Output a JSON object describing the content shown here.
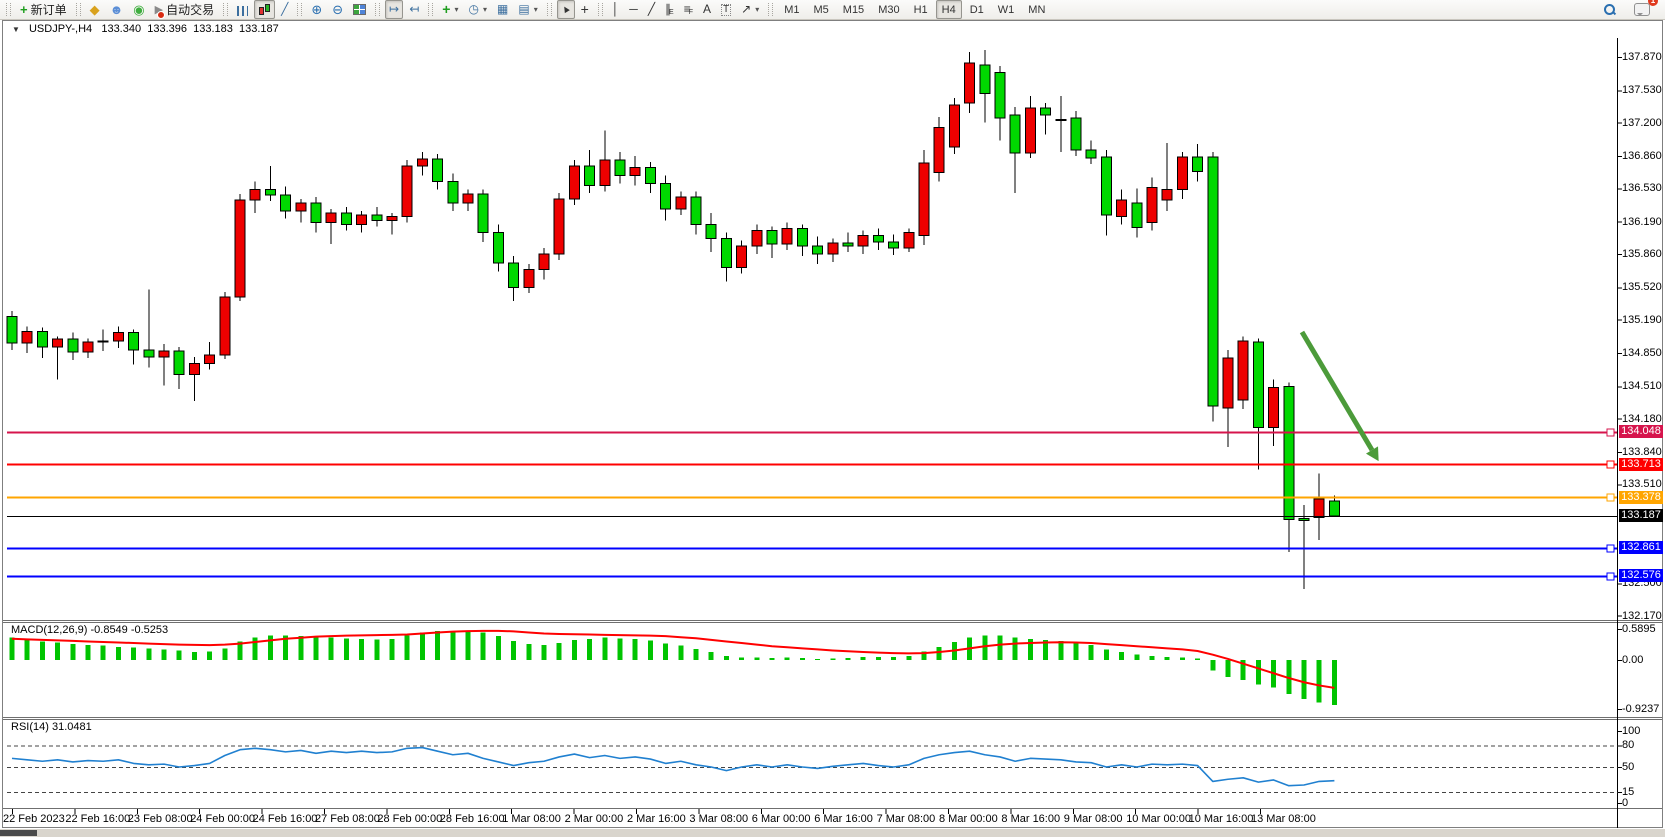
{
  "window_title": {
    "symbol": "USDJPY-,H4",
    "open": "133.340",
    "high": "133.396",
    "low": "133.183",
    "close": "133.187"
  },
  "toolbar": {
    "groups": [
      {
        "items": [
          {
            "name": "new-order",
            "icon": "new-order-icon",
            "label": "新订单"
          }
        ]
      },
      {
        "items": [
          {
            "name": "market-watch",
            "icon": "diamond-icon"
          },
          {
            "name": "community",
            "icon": "profile-icon"
          },
          {
            "name": "signals",
            "icon": "signal-icon"
          },
          {
            "name": "auto-trading",
            "icon": "autotrade-icon",
            "label": "自动交易"
          }
        ]
      },
      {
        "items": [
          {
            "name": "bar-chart-mode",
            "icon": "bar-chart-icon"
          },
          {
            "name": "candle-chart-mode",
            "icon": "candle-chart-icon",
            "active": true
          },
          {
            "name": "line-chart-mode",
            "icon": "line-chart-icon"
          }
        ]
      },
      {
        "items": [
          {
            "name": "zoom-in",
            "icon": "zoom-in-icon"
          },
          {
            "name": "zoom-out",
            "icon": "zoom-out-icon"
          },
          {
            "name": "tile-windows",
            "icon": "tile-windows-icon"
          }
        ]
      },
      {
        "items": [
          {
            "name": "auto-scroll",
            "icon": "auto-scroll-icon",
            "active": true
          },
          {
            "name": "chart-shift",
            "icon": "chart-shift-icon"
          }
        ]
      },
      {
        "items": [
          {
            "name": "add-indicator",
            "icon": "add-indicator-icon",
            "dropdown": true
          },
          {
            "name": "period-selector",
            "icon": "clock-icon",
            "dropdown": true
          },
          {
            "name": "template",
            "icon": "template-icon"
          },
          {
            "name": "indicator-list",
            "icon": "indicator-list-icon",
            "dropdown": true
          }
        ]
      },
      {
        "items": [
          {
            "name": "cursor-tool",
            "icon": "cursor-icon",
            "active": true
          },
          {
            "name": "crosshair-tool",
            "icon": "crosshair-icon"
          }
        ]
      },
      {
        "items": [
          {
            "name": "vline-tool",
            "icon": "vline-icon"
          },
          {
            "name": "hline-tool",
            "icon": "hline-icon"
          },
          {
            "name": "trendline-tool",
            "icon": "trendline-icon"
          },
          {
            "name": "channel-tool",
            "icon": "channel-icon"
          },
          {
            "name": "fibonacci-tool",
            "icon": "fibonacci-icon"
          },
          {
            "name": "text-tool",
            "icon": "text-icon"
          },
          {
            "name": "label-tool",
            "icon": "label-icon"
          },
          {
            "name": "shapes-tool",
            "icon": "shapes-icon",
            "dropdown": true
          }
        ]
      }
    ],
    "timeframes": [
      "M1",
      "M5",
      "M15",
      "M30",
      "H1",
      "H4",
      "D1",
      "W1",
      "MN"
    ],
    "active_timeframe": "H4",
    "right_icons": [
      {
        "name": "search",
        "icon": "search-icon"
      },
      {
        "name": "notifications",
        "icon": "chat-icon",
        "badge": "1"
      }
    ]
  },
  "chart_data": {
    "type": "candlestick",
    "symbol": "USDJPY-",
    "timeframe": "H4",
    "current_bar": {
      "open": 133.34,
      "high": 133.396,
      "low": 133.183,
      "close": 133.187
    },
    "up_color": "#ee0000",
    "down_color": "#00d800",
    "candles": [
      [
        135.22,
        135.28,
        134.88,
        134.95
      ],
      [
        134.95,
        135.12,
        134.85,
        135.07
      ],
      [
        135.07,
        135.11,
        134.8,
        134.91
      ],
      [
        134.91,
        135.02,
        134.58,
        134.99
      ],
      [
        134.99,
        135.06,
        134.78,
        134.86
      ],
      [
        134.86,
        135.0,
        134.8,
        134.96
      ],
      [
        134.96,
        135.09,
        134.87,
        134.97
      ],
      [
        134.97,
        135.12,
        134.9,
        135.06
      ],
      [
        135.06,
        135.09,
        134.73,
        134.88
      ],
      [
        134.88,
        135.5,
        134.7,
        134.81
      ],
      [
        134.81,
        134.94,
        134.52,
        134.87
      ],
      [
        134.87,
        134.91,
        134.48,
        134.63
      ],
      [
        134.63,
        134.81,
        134.36,
        134.74
      ],
      [
        134.74,
        134.96,
        134.68,
        134.83
      ],
      [
        134.83,
        135.47,
        134.79,
        135.42
      ],
      [
        135.42,
        136.47,
        135.38,
        136.41
      ],
      [
        136.41,
        136.6,
        136.28,
        136.52
      ],
      [
        136.52,
        136.76,
        136.4,
        136.46
      ],
      [
        136.46,
        136.55,
        136.22,
        136.3
      ],
      [
        136.3,
        136.42,
        136.18,
        136.38
      ],
      [
        136.38,
        136.44,
        136.08,
        136.18
      ],
      [
        136.18,
        136.32,
        135.96,
        136.28
      ],
      [
        136.28,
        136.34,
        136.1,
        136.16
      ],
      [
        136.16,
        136.3,
        136.08,
        136.26
      ],
      [
        136.26,
        136.34,
        136.14,
        136.2
      ],
      [
        136.2,
        136.28,
        136.06,
        136.24
      ],
      [
        136.24,
        136.82,
        136.18,
        136.76
      ],
      [
        136.76,
        136.9,
        136.66,
        136.83
      ],
      [
        136.83,
        136.88,
        136.52,
        136.6
      ],
      [
        136.6,
        136.68,
        136.3,
        136.38
      ],
      [
        136.38,
        136.52,
        136.3,
        136.47
      ],
      [
        136.47,
        136.52,
        135.98,
        136.08
      ],
      [
        136.08,
        136.16,
        135.68,
        135.77
      ],
      [
        135.77,
        135.84,
        135.38,
        135.52
      ],
      [
        135.52,
        135.76,
        135.46,
        135.7
      ],
      [
        135.7,
        135.92,
        135.6,
        135.86
      ],
      [
        135.86,
        136.48,
        135.8,
        136.42
      ],
      [
        136.42,
        136.82,
        136.36,
        136.76
      ],
      [
        136.76,
        136.92,
        136.48,
        136.56
      ],
      [
        136.56,
        137.12,
        136.5,
        136.82
      ],
      [
        136.82,
        136.9,
        136.58,
        136.66
      ],
      [
        136.66,
        136.86,
        136.56,
        136.74
      ],
      [
        136.74,
        136.8,
        136.48,
        136.58
      ],
      [
        136.58,
        136.66,
        136.2,
        136.32
      ],
      [
        136.32,
        136.5,
        136.26,
        136.44
      ],
      [
        136.44,
        136.5,
        136.06,
        136.16
      ],
      [
        136.16,
        136.28,
        135.88,
        136.02
      ],
      [
        136.02,
        136.08,
        135.58,
        135.72
      ],
      [
        135.72,
        136.0,
        135.66,
        135.94
      ],
      [
        135.94,
        136.16,
        135.86,
        136.1
      ],
      [
        136.1,
        136.14,
        135.82,
        135.96
      ],
      [
        135.96,
        136.18,
        135.9,
        136.12
      ],
      [
        136.12,
        136.16,
        135.84,
        135.94
      ],
      [
        135.94,
        136.04,
        135.76,
        135.86
      ],
      [
        135.86,
        136.02,
        135.78,
        135.97
      ],
      [
        135.97,
        136.08,
        135.88,
        135.94
      ],
      [
        135.94,
        136.1,
        135.86,
        136.05
      ],
      [
        136.05,
        136.12,
        135.9,
        135.98
      ],
      [
        135.98,
        136.06,
        135.85,
        135.92
      ],
      [
        135.92,
        136.12,
        135.88,
        136.08
      ],
      [
        136.05,
        136.92,
        135.95,
        136.79
      ],
      [
        136.69,
        137.26,
        136.6,
        137.15
      ],
      [
        136.95,
        137.45,
        136.88,
        137.38
      ],
      [
        137.4,
        137.92,
        137.3,
        137.81
      ],
      [
        137.79,
        137.94,
        137.2,
        137.5
      ],
      [
        137.71,
        137.78,
        137.02,
        137.25
      ],
      [
        137.28,
        137.36,
        136.48,
        136.89
      ],
      [
        136.89,
        137.47,
        136.84,
        137.35
      ],
      [
        137.35,
        137.4,
        137.08,
        137.28
      ],
      [
        137.22,
        137.47,
        136.9,
        137.23
      ],
      [
        137.25,
        137.32,
        136.86,
        136.92
      ],
      [
        136.92,
        137.02,
        136.78,
        136.84
      ],
      [
        136.85,
        136.92,
        136.05,
        136.26
      ],
      [
        136.24,
        136.52,
        136.16,
        136.41
      ],
      [
        136.38,
        136.53,
        136.03,
        136.13
      ],
      [
        136.18,
        136.64,
        136.1,
        136.54
      ],
      [
        136.41,
        136.99,
        136.3,
        136.52
      ],
      [
        136.52,
        136.9,
        136.42,
        136.85
      ],
      [
        136.85,
        136.98,
        136.6,
        136.7
      ],
      [
        136.85,
        136.9,
        134.15,
        134.31
      ],
      [
        134.29,
        134.88,
        133.89,
        134.8
      ],
      [
        134.37,
        135.02,
        134.28,
        134.97
      ],
      [
        134.96,
        135.0,
        133.66,
        134.09
      ],
      [
        134.09,
        134.58,
        133.9,
        134.5
      ],
      [
        134.51,
        134.55,
        132.82,
        133.15
      ],
      [
        133.16,
        133.3,
        132.44,
        133.14
      ],
      [
        133.17,
        133.62,
        132.94,
        133.36
      ],
      [
        133.34,
        133.396,
        133.183,
        133.187
      ]
    ],
    "price_axis": {
      "ticks": [
        "137.870",
        "137.530",
        "137.200",
        "136.860",
        "136.530",
        "136.190",
        "135.860",
        "135.520",
        "135.190",
        "134.850",
        "134.510",
        "134.180",
        "133.840",
        "133.510",
        "132.500",
        "132.170"
      ],
      "top_price": 137.87,
      "bottom_price": 132.17
    },
    "hlines": [
      {
        "price": "134.048",
        "color": "#d6144c",
        "style": "level"
      },
      {
        "price": "133.713",
        "color": "#ff0000",
        "style": "level"
      },
      {
        "price": "133.378",
        "color": "#ffa500",
        "style": "level"
      },
      {
        "price": "133.187",
        "color": "#000000",
        "style": "bid"
      },
      {
        "price": "132.861",
        "color": "#0000ff",
        "style": "level"
      },
      {
        "price": "132.576",
        "color": "#0000ff",
        "style": "level"
      }
    ],
    "time_axis": [
      "22 Feb 2023",
      "22 Feb 16:00",
      "23 Feb 08:00",
      "24 Feb 00:00",
      "24 Feb 16:00",
      "27 Feb 08:00",
      "28 Feb 00:00",
      "28 Feb 16:00",
      "1 Mar 08:00",
      "2 Mar 00:00",
      "2 Mar 16:00",
      "3 Mar 08:00",
      "6 Mar 00:00",
      "6 Mar 16:00",
      "7 Mar 08:00",
      "8 Mar 00:00",
      "8 Mar 16:00",
      "9 Mar 08:00",
      "10 Mar 00:00",
      "10 Mar 16:00",
      "13 Mar 08:00"
    ],
    "indicators": {
      "macd": {
        "label": "MACD(12,26,9)",
        "values_text": "-0.8549 -0.5253",
        "scale": [
          "0.5895",
          "0.00",
          "-0.9237"
        ],
        "hist_color": "#00c400",
        "signal_color": "#ff0000",
        "histogram": [
          0.42,
          0.38,
          0.35,
          0.33,
          0.3,
          0.28,
          0.27,
          0.25,
          0.24,
          0.22,
          0.2,
          0.18,
          0.15,
          0.16,
          0.22,
          0.35,
          0.42,
          0.46,
          0.46,
          0.45,
          0.43,
          0.42,
          0.41,
          0.4,
          0.39,
          0.4,
          0.46,
          0.52,
          0.55,
          0.55,
          0.55,
          0.52,
          0.45,
          0.36,
          0.3,
          0.28,
          0.32,
          0.38,
          0.4,
          0.42,
          0.41,
          0.4,
          0.37,
          0.31,
          0.27,
          0.21,
          0.15,
          0.08,
          0.05,
          0.05,
          0.04,
          0.05,
          0.04,
          0.02,
          0.03,
          0.04,
          0.06,
          0.06,
          0.06,
          0.08,
          0.16,
          0.25,
          0.34,
          0.42,
          0.46,
          0.46,
          0.42,
          0.4,
          0.38,
          0.36,
          0.32,
          0.28,
          0.2,
          0.15,
          0.1,
          0.08,
          0.06,
          0.05,
          0.03,
          -0.2,
          -0.32,
          -0.38,
          -0.46,
          -0.52,
          -0.64,
          -0.74,
          -0.8,
          -0.85
        ],
        "signal": [
          0.4,
          0.39,
          0.38,
          0.37,
          0.36,
          0.35,
          0.34,
          0.33,
          0.32,
          0.31,
          0.3,
          0.29,
          0.285,
          0.28,
          0.29,
          0.31,
          0.34,
          0.37,
          0.4,
          0.42,
          0.44,
          0.45,
          0.46,
          0.465,
          0.47,
          0.475,
          0.48,
          0.5,
          0.52,
          0.535,
          0.545,
          0.55,
          0.55,
          0.54,
          0.52,
          0.5,
          0.49,
          0.485,
          0.48,
          0.475,
          0.47,
          0.465,
          0.46,
          0.45,
          0.43,
          0.41,
          0.38,
          0.35,
          0.32,
          0.29,
          0.26,
          0.24,
          0.22,
          0.2,
          0.18,
          0.165,
          0.15,
          0.14,
          0.13,
          0.125,
          0.13,
          0.15,
          0.18,
          0.22,
          0.26,
          0.29,
          0.31,
          0.32,
          0.33,
          0.335,
          0.33,
          0.32,
          0.3,
          0.28,
          0.26,
          0.24,
          0.22,
          0.2,
          0.17,
          0.1,
          0.02,
          -0.07,
          -0.16,
          -0.25,
          -0.34,
          -0.42,
          -0.48,
          -0.525
        ]
      },
      "rsi": {
        "label": "RSI(14)",
        "value_text": "31.0481",
        "scale": [
          "100",
          "80",
          "50",
          "15",
          "0"
        ],
        "levels": [
          80,
          50,
          15
        ],
        "color": "#2080d0",
        "series": [
          62,
          60,
          58,
          60,
          57,
          59,
          58,
          60,
          55,
          53,
          54,
          50,
          52,
          55,
          66,
          74,
          76,
          74,
          71,
          73,
          69,
          72,
          70,
          72,
          70,
          71,
          76,
          77,
          72,
          67,
          69,
          62,
          57,
          52,
          56,
          58,
          64,
          68,
          63,
          66,
          62,
          64,
          61,
          55,
          58,
          53,
          50,
          45,
          50,
          53,
          50,
          53,
          50,
          48,
          51,
          53,
          55,
          52,
          50,
          53,
          62,
          67,
          70,
          72,
          67,
          64,
          58,
          62,
          61,
          60,
          57,
          56,
          50,
          53,
          50,
          54,
          53,
          54,
          52,
          30,
          33,
          35,
          29,
          32,
          24,
          25,
          30,
          31
        ]
      }
    },
    "annotation_arrow": {
      "color": "#4c9b3a",
      "from": [
        1302,
        332
      ],
      "to": [
        1372,
        450
      ]
    }
  }
}
